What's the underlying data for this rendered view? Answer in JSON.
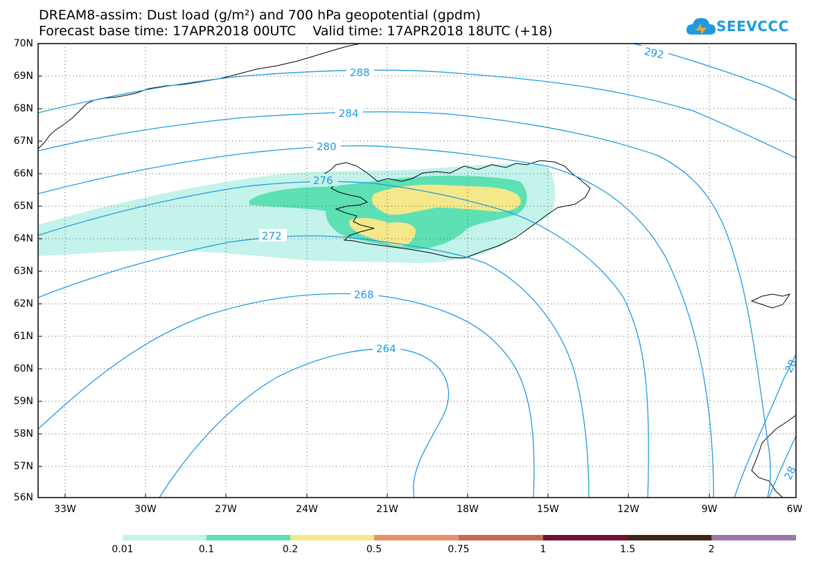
{
  "title": {
    "line1": "DREAM8-assim: Dust load (g/m²) and 700 hPa geopotential (gpdm)",
    "line2": "Forecast base time: 17APR2018 00UTC    Valid time: 17APR2018 18UTC (+18)"
  },
  "logo": {
    "text": "SEEVCCC",
    "icon": "cloud-logo-icon",
    "color": "#1e9be0"
  },
  "axes": {
    "lat_labels": [
      "70N",
      "69N",
      "68N",
      "67N",
      "66N",
      "65N",
      "64N",
      "63N",
      "62N",
      "61N",
      "60N",
      "59N",
      "58N",
      "57N",
      "56N"
    ],
    "lon_labels": [
      "33W",
      "30W",
      "27W",
      "24W",
      "21W",
      "18W",
      "15W",
      "12W",
      "9W",
      "6W"
    ]
  },
  "contours": {
    "color": "#1e9be0",
    "labels": [
      "292",
      "288",
      "284",
      "280",
      "276",
      "272",
      "268",
      "264",
      "28",
      "28"
    ]
  },
  "colorbar": {
    "colors": [
      "#c3f3ea",
      "#5de0b4",
      "#f4e88a",
      "#e8916a",
      "#c46a55",
      "#a04848",
      "#7a1030",
      "#3c2818",
      "#9a78a8"
    ],
    "labels": [
      "0.01",
      "0.1",
      "0.2",
      "0.5",
      "0.75",
      "1",
      "1.5",
      "2"
    ]
  }
}
